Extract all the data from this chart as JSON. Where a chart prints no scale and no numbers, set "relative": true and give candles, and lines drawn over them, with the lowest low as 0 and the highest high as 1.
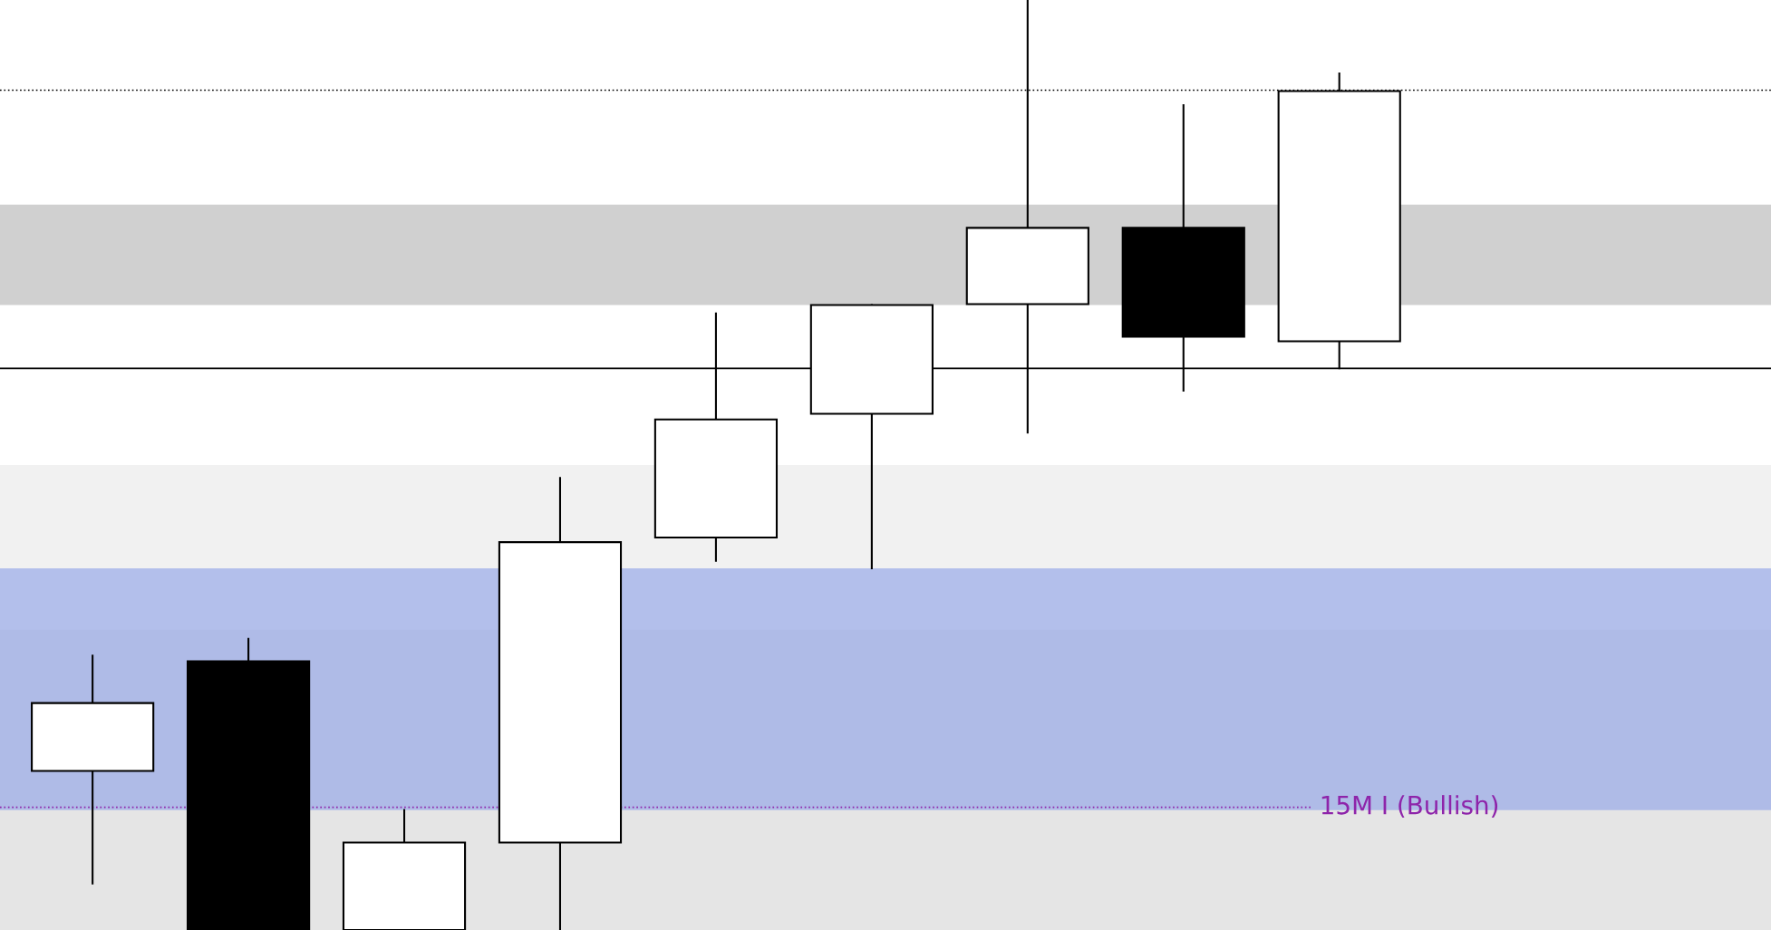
{
  "chart_data": {
    "type": "candlestick",
    "relative": true,
    "categories": [
      null,
      null,
      null,
      null,
      null,
      null,
      null,
      null,
      null
    ],
    "ohlc": [
      [
        0.171,
        0.295,
        0.05,
        0.244
      ],
      [
        0.289,
        0.313,
        0.0,
        0.0
      ],
      [
        0.0,
        0.129,
        0.0,
        0.094
      ],
      [
        0.094,
        0.486,
        0.0,
        0.417
      ],
      [
        0.422,
        0.663,
        0.397,
        0.549
      ],
      [
        0.555,
        0.672,
        0.389,
        0.672
      ],
      [
        0.673,
        1.0,
        0.535,
        0.755
      ],
      [
        0.755,
        0.887,
        0.58,
        0.638
      ],
      [
        0.633,
        0.921,
        0.604,
        0.902
      ]
    ],
    "bands": [
      {
        "axis": "y",
        "from": 0.0,
        "to": 0.323,
        "color": "#d3d3d3"
      },
      {
        "axis": "y",
        "from": 0.323,
        "to": 0.5,
        "color": "#e8e8e8"
      },
      {
        "axis": "y",
        "from": 0.672,
        "to": 0.78,
        "color": "#b0b0b0"
      },
      {
        "axis": "y",
        "from": 0.129,
        "to": 0.389,
        "color": "#8a9ee8"
      }
    ],
    "ref_lines": [
      {
        "axis": "y",
        "value": 0.903,
        "color": "#000000",
        "line_style": "dotted"
      },
      {
        "axis": "y",
        "value": 0.604,
        "color": "#000000",
        "line_style": "solid"
      },
      {
        "axis": "y",
        "value": 0.132,
        "label": "15M I (Bullish)",
        "color": "#8e24aa",
        "line_style": "dotted"
      }
    ]
  }
}
